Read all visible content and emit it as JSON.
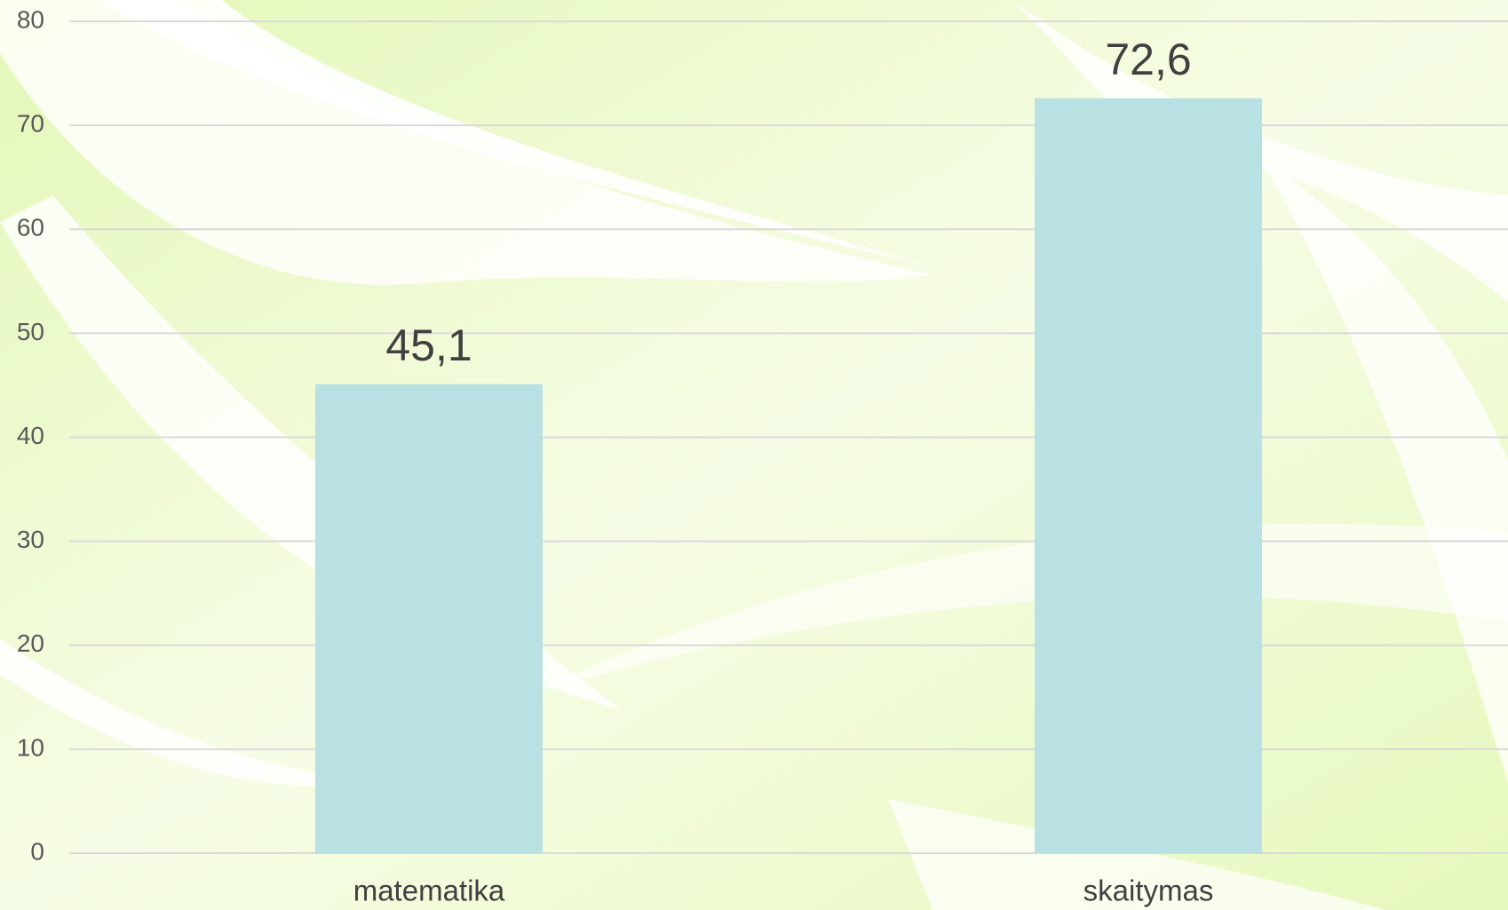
{
  "chart_data": {
    "type": "bar",
    "categories": [
      "matematika",
      "skaitymas"
    ],
    "values": [
      45.1,
      72.6
    ],
    "value_labels": [
      "45,1",
      "72,6"
    ],
    "color": "#b9e0e3",
    "ylim": [
      0,
      80
    ],
    "yticks": [
      0,
      10,
      20,
      30,
      40,
      50,
      60,
      70,
      80
    ],
    "grid": true
  }
}
